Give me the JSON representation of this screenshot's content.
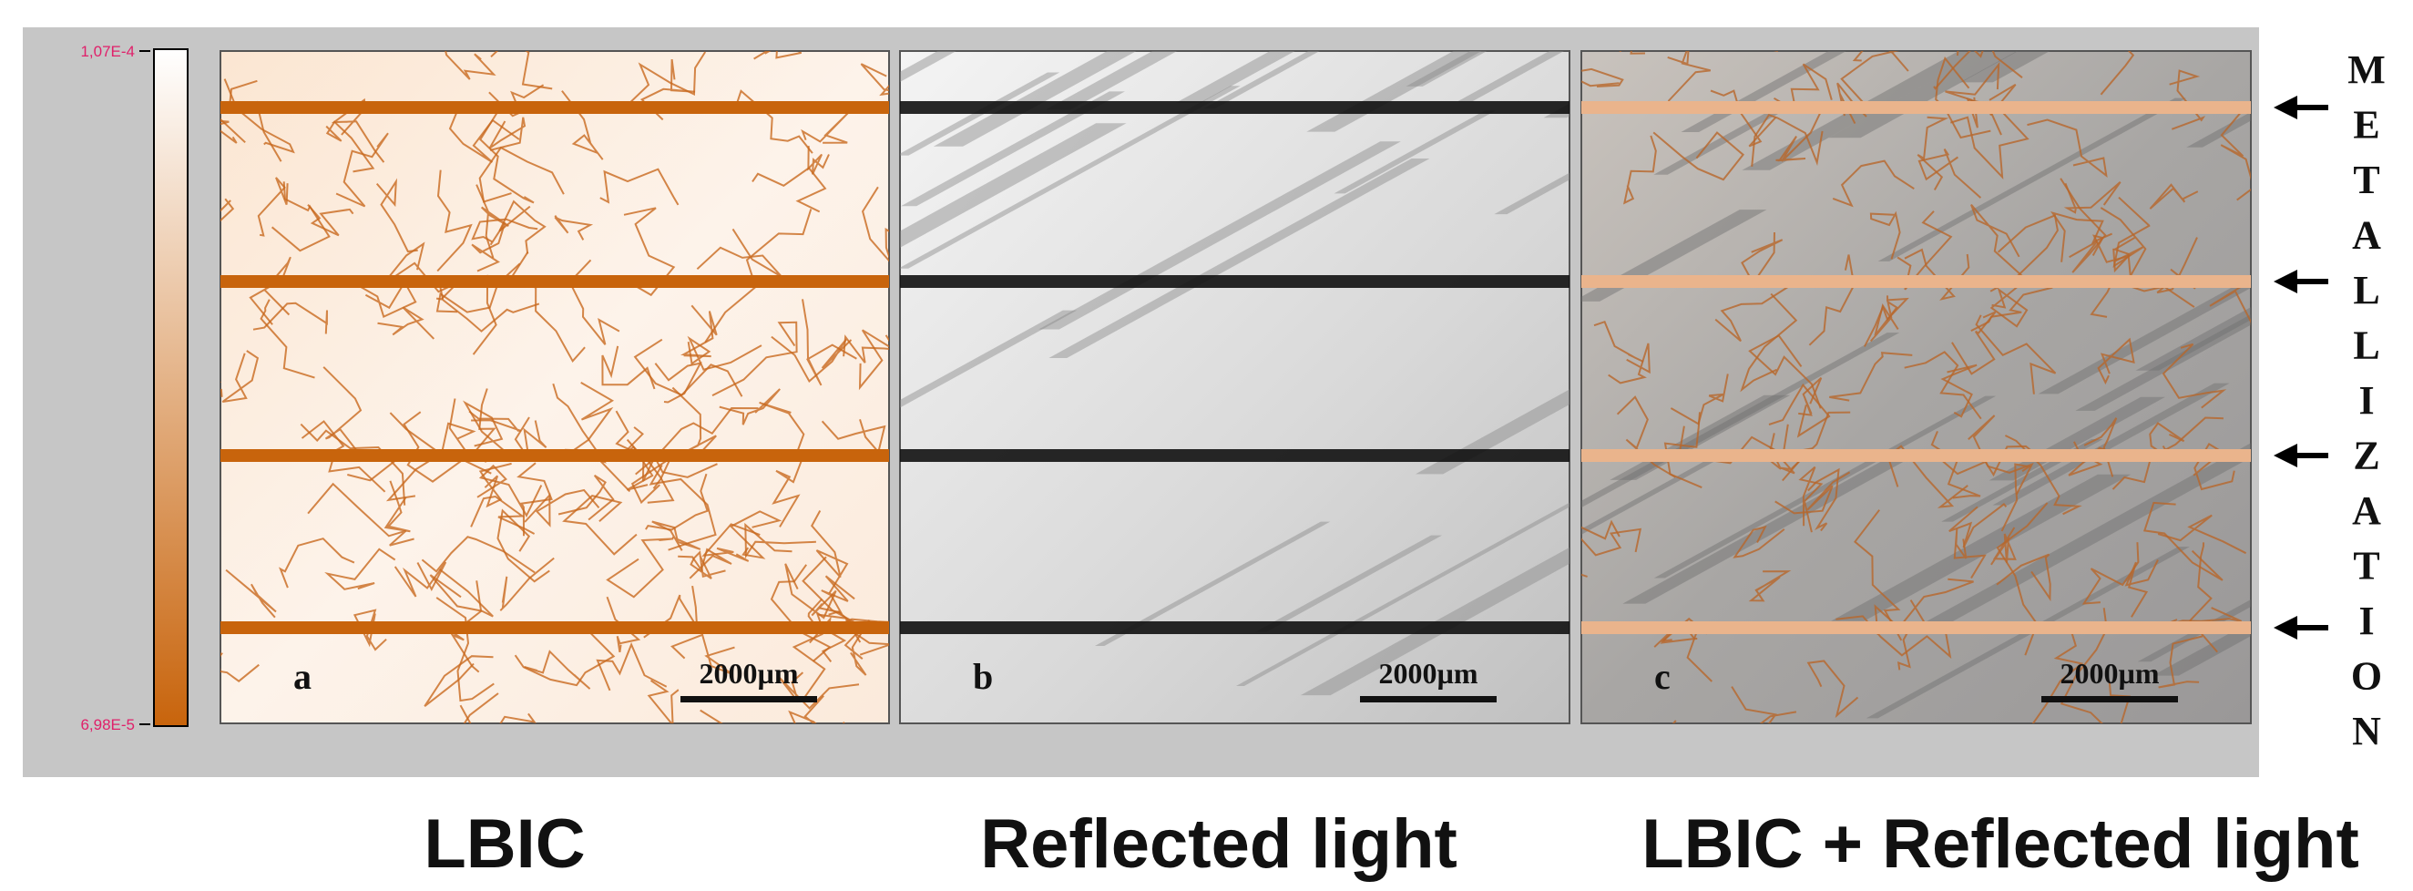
{
  "colorbar": {
    "max_label": "1,07E-4",
    "min_label": "6,98E-5"
  },
  "panels": [
    {
      "letter": "a",
      "scale_bar": "2000µm",
      "caption": "LBIC"
    },
    {
      "letter": "b",
      "scale_bar": "2000µm",
      "caption": "Reflected light"
    },
    {
      "letter": "c",
      "scale_bar": "2000µm",
      "caption": "LBIC + Reflected light"
    }
  ],
  "side_label": "METALLIZATION"
}
